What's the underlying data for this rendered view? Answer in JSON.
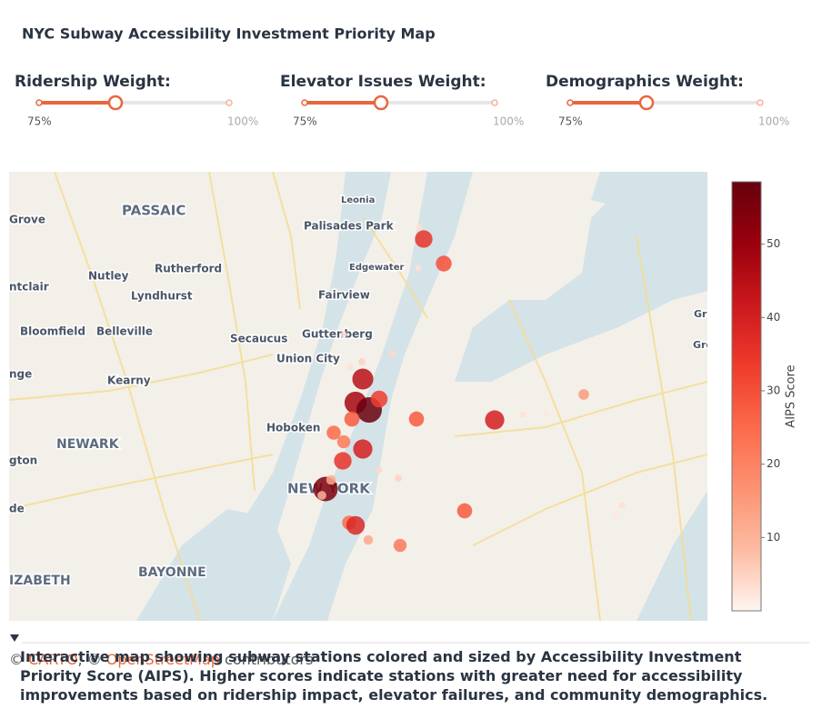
{
  "title": "NYC Subway Accessibility Investment Priority Map",
  "sliders": [
    {
      "label": "Ridership Weight:",
      "min_label": "75%",
      "max_label": "100%"
    },
    {
      "label": "Elevator Issues Weight:",
      "min_label": "75%",
      "max_label": "100%"
    },
    {
      "label": "Demographics Weight:",
      "min_label": "75%",
      "max_label": "100%"
    }
  ],
  "map": {
    "places": [
      "PASSAIC",
      "Rutherford",
      "Nutley",
      "Lyndhurst",
      "ntclair",
      "Grove",
      "Bloomfield",
      "Belleville",
      "Kearny",
      "nge",
      "NEWARK",
      "gton",
      "de",
      "IZABETH",
      "BAYONNE",
      "Secaucus",
      "Union City",
      "Guttenberg",
      "Fairview",
      "Edgewater",
      "Palisades Park",
      "Leonia",
      "Hoboken",
      "NEW YORK",
      "Gre",
      "Gre"
    ],
    "stations": [
      35,
      30,
      45,
      48,
      58,
      33,
      28,
      25,
      22,
      40,
      35,
      55,
      10,
      28,
      40,
      25,
      38,
      28,
      22,
      12,
      15,
      12,
      5,
      4,
      5,
      3,
      3,
      3,
      3,
      2,
      3,
      2,
      4,
      3
    ]
  },
  "colorbar": {
    "title": "AIPS Score",
    "range": [
      0,
      58.5
    ],
    "ticks": [
      10,
      20,
      30,
      40,
      50
    ],
    "colors": [
      "#fff5f0",
      "#fcbba1",
      "#fc9272",
      "#fb6a4a",
      "#ef3b2c",
      "#cb181d",
      "#99000d",
      "#67000d"
    ]
  },
  "attribution": {
    "prefix": "©",
    "carto": "CARTO",
    "middle": ", ©",
    "osm": "OpenStreetMap",
    "suffix": "contributors"
  },
  "description": "Interactive map showing subway stations colored and sized by Accessibility Investment Priority Score (AIPS). Higher scores indicate stations with greater need for accessibility improvements based on ridership impact, elevator failures, and community demographics."
}
